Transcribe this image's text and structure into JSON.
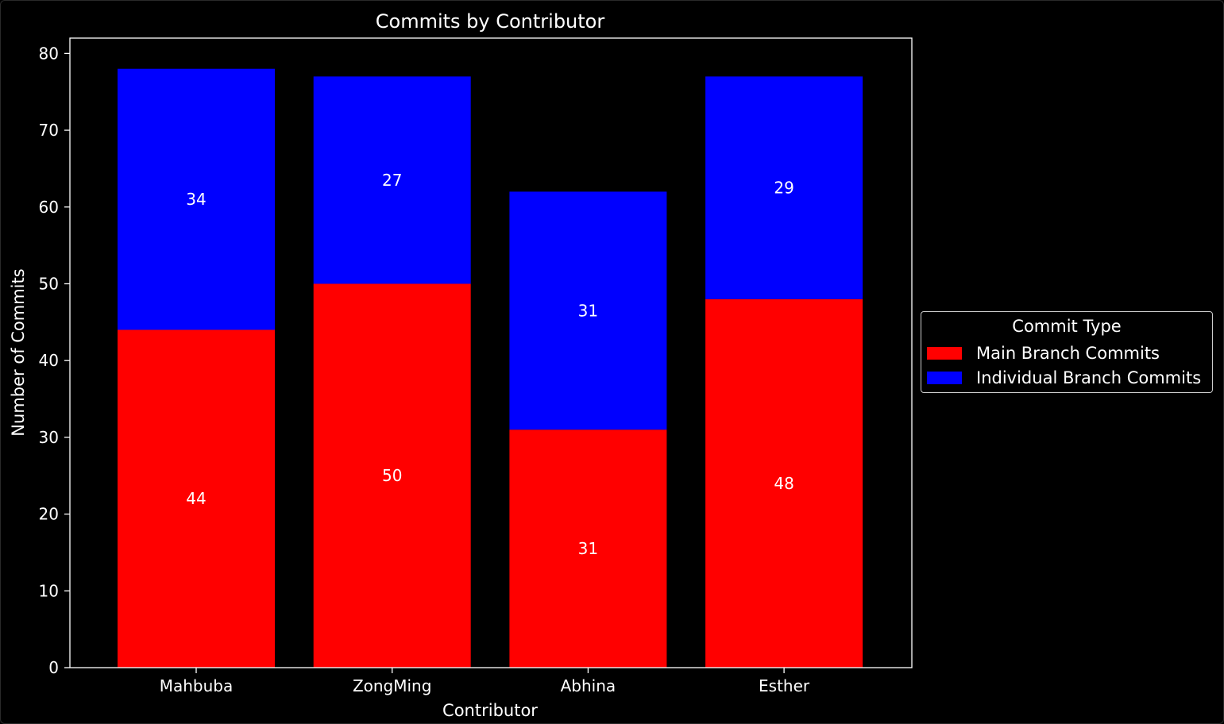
{
  "chart_data": {
    "type": "bar",
    "stacked": true,
    "title": "Commits by Contributor",
    "xlabel": "Contributor",
    "ylabel": "Number of Commits",
    "categories": [
      "Mahbuba",
      "ZongMing",
      "Abhina",
      "Esther"
    ],
    "series": [
      {
        "name": "Main Branch Commits",
        "values": [
          44,
          50,
          31,
          48
        ],
        "color": "#ff0000"
      },
      {
        "name": "Individual Branch Commits",
        "values": [
          34,
          27,
          31,
          29
        ],
        "color": "#0000ff"
      }
    ],
    "ylim": [
      0,
      82
    ],
    "yticks": [
      0,
      10,
      20,
      30,
      40,
      50,
      60,
      70,
      80
    ],
    "grid": false,
    "legend": {
      "title": "Commit Type",
      "placement": "right of plot, vertically centered"
    },
    "background": "#000000",
    "text_color": "#ffffff"
  }
}
